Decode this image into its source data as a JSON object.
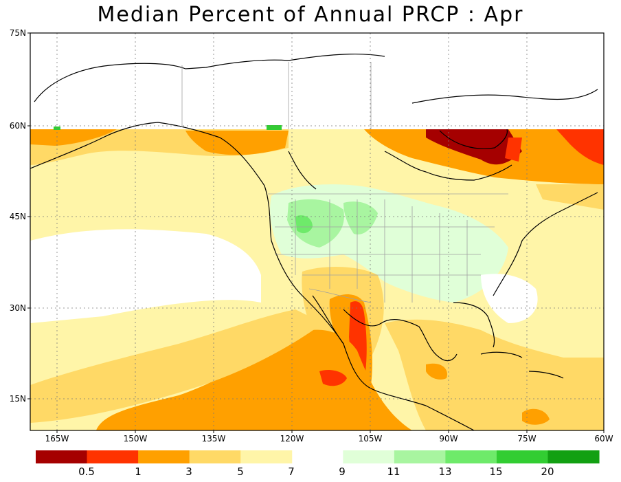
{
  "title": "Median Percent of Annual PRCP :   Apr",
  "map": {
    "lat_labels": [
      "75N",
      "60N",
      "45N",
      "30N",
      "15N"
    ],
    "lon_labels": [
      "165W",
      "150W",
      "135W",
      "120W",
      "105W",
      "90W",
      "75W",
      "60W"
    ]
  },
  "colorbar": {
    "colors": [
      "#a50000",
      "#ff3300",
      "#ffa000",
      "#ffd966",
      "#fff5a8",
      "#ffffff",
      "#e0ffd8",
      "#a8f5a0",
      "#6eea6a",
      "#32cd32",
      "#12a012"
    ],
    "labels": [
      "0.5",
      "1",
      "3",
      "5",
      "7",
      "9",
      "11",
      "13",
      "15",
      "20"
    ]
  }
}
